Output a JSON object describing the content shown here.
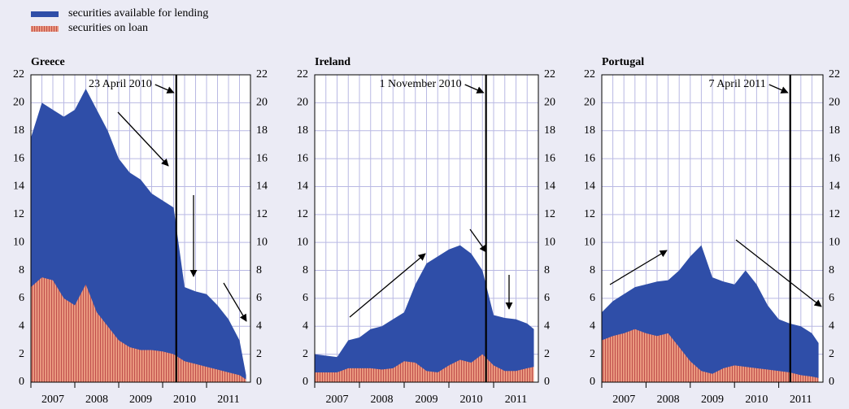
{
  "chart_data": [
    {
      "type": "area",
      "title": "Greece",
      "x": [
        2007.0,
        2007.25,
        2007.5,
        2007.75,
        2008.0,
        2008.25,
        2008.5,
        2008.75,
        2009.0,
        2009.25,
        2009.5,
        2009.75,
        2010.0,
        2010.25,
        2010.5,
        2010.75,
        2011.0,
        2011.25,
        2011.5,
        2011.75,
        2011.9
      ],
      "series": [
        {
          "name": "securities available for lending",
          "color": "#2f4ea8",
          "values": [
            17.5,
            20,
            19.5,
            19,
            19.5,
            21,
            19.5,
            18,
            16,
            15,
            14.5,
            13.5,
            13,
            12.5,
            6.8,
            6.5,
            6.3,
            5.5,
            4.5,
            3,
            0.5
          ]
        },
        {
          "name": "securities on loan",
          "color": "#e9977e",
          "values": [
            6.8,
            7.5,
            7.3,
            6,
            5.5,
            7,
            5,
            4,
            3,
            2.5,
            2.3,
            2.3,
            2.2,
            2,
            1.5,
            1.3,
            1.1,
            0.9,
            0.7,
            0.5,
            0.2
          ]
        }
      ],
      "xlim": [
        2007,
        2012
      ],
      "xticks": [
        2007,
        2008,
        2009,
        2010,
        2011
      ],
      "ylim": [
        0,
        22
      ],
      "yticks": [
        0,
        2,
        4,
        6,
        8,
        10,
        12,
        14,
        16,
        18,
        20,
        22
      ],
      "grid": true,
      "event": {
        "label": "23 April 2010",
        "x": 2010.31
      }
    },
    {
      "type": "area",
      "title": "Ireland",
      "x": [
        2007.0,
        2007.25,
        2007.5,
        2007.75,
        2008.0,
        2008.25,
        2008.5,
        2008.75,
        2009.0,
        2009.25,
        2009.5,
        2009.75,
        2010.0,
        2010.25,
        2010.5,
        2010.75,
        2011.0,
        2011.25,
        2011.5,
        2011.75,
        2011.9
      ],
      "series": [
        {
          "color": "#2f4ea8",
          "values": [
            2,
            1.9,
            1.8,
            3,
            3.2,
            3.8,
            4,
            4.5,
            5,
            7,
            8.5,
            9,
            9.5,
            9.8,
            9.2,
            8,
            4.8,
            4.6,
            4.5,
            4.2,
            3.8
          ]
        },
        {
          "color": "#e9977e",
          "values": [
            0.7,
            0.7,
            0.7,
            1,
            1,
            1,
            0.9,
            1,
            1.5,
            1.4,
            0.8,
            0.7,
            1.2,
            1.6,
            1.4,
            2,
            1.2,
            0.8,
            0.8,
            1,
            1.1
          ]
        }
      ],
      "xlim": [
        2007,
        2012
      ],
      "xticks": [
        2007,
        2008,
        2009,
        2010,
        2011
      ],
      "ylim": [
        0,
        22
      ],
      "yticks": [
        0,
        2,
        4,
        6,
        8,
        10,
        12,
        14,
        16,
        18,
        20,
        22
      ],
      "grid": true,
      "event": {
        "label": "1 November 2010",
        "x": 2010.83
      }
    },
    {
      "type": "area",
      "title": "Portugal",
      "x": [
        2007.0,
        2007.25,
        2007.5,
        2007.75,
        2008.0,
        2008.25,
        2008.5,
        2008.75,
        2009.0,
        2009.25,
        2009.5,
        2009.75,
        2010.0,
        2010.25,
        2010.5,
        2010.75,
        2011.0,
        2011.25,
        2011.5,
        2011.75,
        2011.9
      ],
      "series": [
        {
          "color": "#2f4ea8",
          "values": [
            5,
            5.8,
            6.3,
            6.8,
            7,
            7.2,
            7.3,
            8,
            9,
            9.8,
            7.5,
            7.2,
            7,
            8,
            7,
            5.5,
            4.5,
            4.2,
            4,
            3.5,
            2.8
          ]
        },
        {
          "color": "#e9977e",
          "values": [
            3,
            3.3,
            3.5,
            3.8,
            3.5,
            3.3,
            3.5,
            2.5,
            1.5,
            0.8,
            0.6,
            1,
            1.2,
            1.1,
            1,
            0.9,
            0.8,
            0.7,
            0.5,
            0.4,
            0.3
          ]
        }
      ],
      "xlim": [
        2007,
        2012
      ],
      "xticks": [
        2007,
        2008,
        2009,
        2010,
        2011
      ],
      "ylim": [
        0,
        22
      ],
      "yticks": [
        0,
        2,
        4,
        6,
        8,
        10,
        12,
        14,
        16,
        18,
        20,
        22
      ],
      "grid": true,
      "event": {
        "label": "7 April 2011",
        "x": 2011.26
      }
    }
  ]
}
